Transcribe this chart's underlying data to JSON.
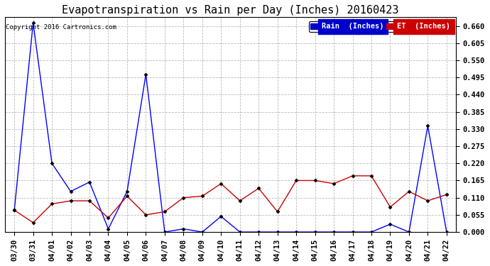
{
  "title": "Evapotranspiration vs Rain per Day (Inches) 20160423",
  "copyright": "Copyright 2016 Cartronics.com",
  "x_labels": [
    "03/30",
    "03/31",
    "04/01",
    "04/02",
    "04/03",
    "04/04",
    "04/05",
    "04/06",
    "04/07",
    "04/08",
    "04/09",
    "04/10",
    "04/11",
    "04/12",
    "04/13",
    "04/14",
    "04/15",
    "04/16",
    "04/17",
    "04/18",
    "04/19",
    "04/20",
    "04/21",
    "04/22"
  ],
  "rain_values": [
    0.07,
    0.67,
    0.22,
    0.13,
    0.16,
    0.01,
    0.13,
    0.505,
    0.0,
    0.01,
    0.0,
    0.05,
    0.0,
    0.0,
    0.0,
    0.0,
    0.0,
    0.0,
    0.0,
    0.0,
    0.025,
    0.0,
    0.34,
    0.0
  ],
  "et_values": [
    0.07,
    0.03,
    0.09,
    0.1,
    0.1,
    0.045,
    0.115,
    0.055,
    0.065,
    0.11,
    0.115,
    0.155,
    0.1,
    0.14,
    0.065,
    0.165,
    0.165,
    0.155,
    0.18,
    0.18,
    0.08,
    0.13,
    0.1,
    0.12
  ],
  "rain_color": "#0000ff",
  "et_color": "#cc0000",
  "background_color": "#ffffff",
  "grid_color": "#bbbbbb",
  "ylim": [
    0.0,
    0.6875
  ],
  "yticks": [
    0.0,
    0.055,
    0.11,
    0.165,
    0.22,
    0.275,
    0.33,
    0.385,
    0.44,
    0.495,
    0.55,
    0.605,
    0.66
  ],
  "legend_rain_bg": "#0000cc",
  "legend_et_bg": "#cc0000",
  "legend_rain_label": "Rain  (Inches)",
  "legend_et_label": "ET  (Inches)",
  "title_fontsize": 11,
  "copyright_fontsize": 6.5,
  "tick_fontsize": 7.5,
  "legend_fontsize": 7.5
}
